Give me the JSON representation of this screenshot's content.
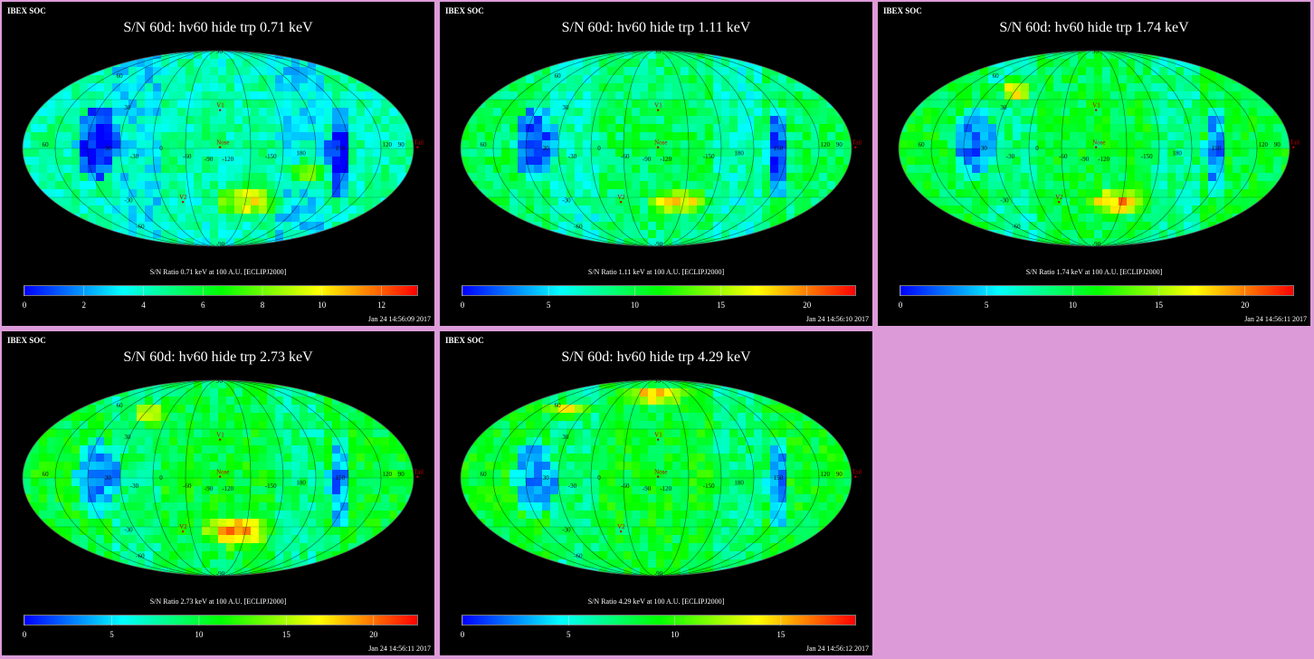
{
  "colors": {
    "background": "#dc9bd8",
    "panel": "#000000",
    "scale": [
      "#0000ff",
      "#00ffff",
      "#00ff00",
      "#ffff00",
      "#ff0000"
    ]
  },
  "panels": [
    {
      "soc": "IBEX SOC",
      "title": "S/N  60d: hv60 hide trp 0.71 keV",
      "caption": "S/N Ratio 0.71 keV at 100 A.U. [ECLIPJ2000]",
      "timestamp": "Jan 24 14:56:09 2017",
      "ticks": [
        "0",
        "2",
        "4",
        "6",
        "8",
        "10",
        "12"
      ],
      "tick_values": [
        0,
        2,
        4,
        6,
        8,
        10,
        12
      ],
      "range": [
        0,
        13.2
      ]
    },
    {
      "soc": "IBEX SOC",
      "title": "S/N  60d: hv60 hide trp 1.11 keV",
      "caption": "S/N Ratio 1.11 keV at 100 A.U. [ECLIPJ2000]",
      "timestamp": "Jan 24 14:56:10 2017",
      "ticks": [
        "0",
        "5",
        "10",
        "15",
        "20"
      ],
      "tick_values": [
        0,
        5,
        10,
        15,
        20
      ],
      "range": [
        0,
        22.8
      ]
    },
    {
      "soc": "IBEX SOC",
      "title": "S/N  60d: hv60 hide trp 1.74 keV",
      "caption": "S/N Ratio 1.74 keV at 100 A.U. [ECLIPJ2000]",
      "timestamp": "Jan 24 14:56:11 2017",
      "ticks": [
        "0",
        "5",
        "10",
        "15",
        "20"
      ],
      "tick_values": [
        0,
        5,
        10,
        15,
        20
      ],
      "range": [
        0,
        22.8
      ]
    },
    {
      "soc": "IBEX SOC",
      "title": "S/N  60d: hv60 hide trp 2.73 keV",
      "caption": "S/N Ratio 2.73 keV at 100 A.U. [ECLIPJ2000]",
      "timestamp": "Jan 24 14:56:11 2017",
      "ticks": [
        "0",
        "5",
        "10",
        "15",
        "20"
      ],
      "tick_values": [
        0,
        5,
        10,
        15,
        20
      ],
      "range": [
        0,
        22.5
      ]
    },
    {
      "soc": "IBEX SOC",
      "title": "S/N  60d: hv60 hide trp 4.29 keV",
      "caption": "S/N Ratio 4.29 keV at 100 A.U. [ECLIPJ2000]",
      "timestamp": "Jan 24 14:56:12 2017",
      "ticks": [
        "0",
        "5",
        "10",
        "15"
      ],
      "tick_values": [
        0,
        5,
        10,
        15
      ],
      "range": [
        0,
        18.5
      ]
    }
  ],
  "map_labels": {
    "lon": [
      "60",
      "30",
      "0",
      "-30",
      "-60",
      "-90",
      "-120",
      "-150",
      "180",
      "150",
      "120",
      "90"
    ],
    "lat": [
      "60",
      "30",
      "-30",
      "-60",
      "90",
      "-90"
    ],
    "markers": [
      "V1",
      "V2",
      "Nose",
      "Tail"
    ]
  }
}
